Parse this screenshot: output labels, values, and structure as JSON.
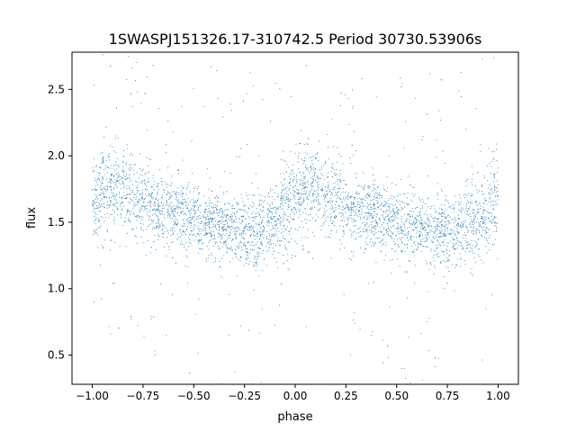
{
  "chart_data": {
    "type": "scatter",
    "title": "1SWASPJ151326.17-310742.5 Period 30730.53906s",
    "xlabel": "phase",
    "ylabel": "flux",
    "xlim": [
      -1.1,
      1.1
    ],
    "ylim": [
      0.28,
      2.78
    ],
    "xticks": [
      -1.0,
      -0.75,
      -0.5,
      -0.25,
      0.0,
      0.25,
      0.5,
      0.75,
      1.0
    ],
    "xtick_labels": [
      "−1.00",
      "−0.75",
      "−0.50",
      "−0.25",
      "0.00",
      "0.25",
      "0.50",
      "0.75",
      "1.00"
    ],
    "yticks": [
      0.5,
      1.0,
      1.5,
      2.0,
      2.5
    ],
    "ytick_labels": [
      "0.5",
      "1.0",
      "1.5",
      "2.0",
      "2.5"
    ],
    "grid": false,
    "legend": "none",
    "marker_color": "#1f77b4",
    "phase_range": [
      -1.0,
      1.0
    ],
    "series": [
      {
        "phase": [
          -1.0,
          -0.95,
          -0.9,
          -0.85,
          -0.8,
          -0.75,
          -0.7,
          -0.65,
          -0.6,
          -0.55,
          -0.5,
          -0.45,
          -0.4,
          -0.35,
          -0.3,
          -0.25,
          -0.2,
          -0.15,
          -0.1,
          -0.05,
          0.0,
          0.05,
          0.1,
          0.15,
          0.2,
          0.25,
          0.3,
          0.35,
          0.4,
          0.45,
          0.5,
          0.55,
          0.6,
          0.65,
          0.7,
          0.75,
          0.8,
          0.85,
          0.9,
          0.95,
          1.0
        ],
        "flux_median": [
          1.62,
          1.72,
          1.74,
          1.72,
          1.69,
          1.65,
          1.62,
          1.6,
          1.57,
          1.54,
          1.51,
          1.49,
          1.47,
          1.45,
          1.44,
          1.43,
          1.43,
          1.45,
          1.49,
          1.6,
          1.72,
          1.74,
          1.72,
          1.69,
          1.65,
          1.62,
          1.6,
          1.57,
          1.54,
          1.51,
          1.49,
          1.47,
          1.45,
          1.44,
          1.43,
          1.43,
          1.45,
          1.47,
          1.5,
          1.58,
          1.68
        ],
        "flux_spread": [
          0.17,
          0.18,
          0.17,
          0.16,
          0.16,
          0.15,
          0.14,
          0.14,
          0.13,
          0.13,
          0.13,
          0.13,
          0.13,
          0.13,
          0.13,
          0.13,
          0.13,
          0.13,
          0.14,
          0.17,
          0.18,
          0.17,
          0.16,
          0.16,
          0.15,
          0.14,
          0.14,
          0.13,
          0.13,
          0.13,
          0.13,
          0.13,
          0.13,
          0.13,
          0.13,
          0.13,
          0.13,
          0.14,
          0.15,
          0.17,
          0.18
        ]
      }
    ]
  }
}
